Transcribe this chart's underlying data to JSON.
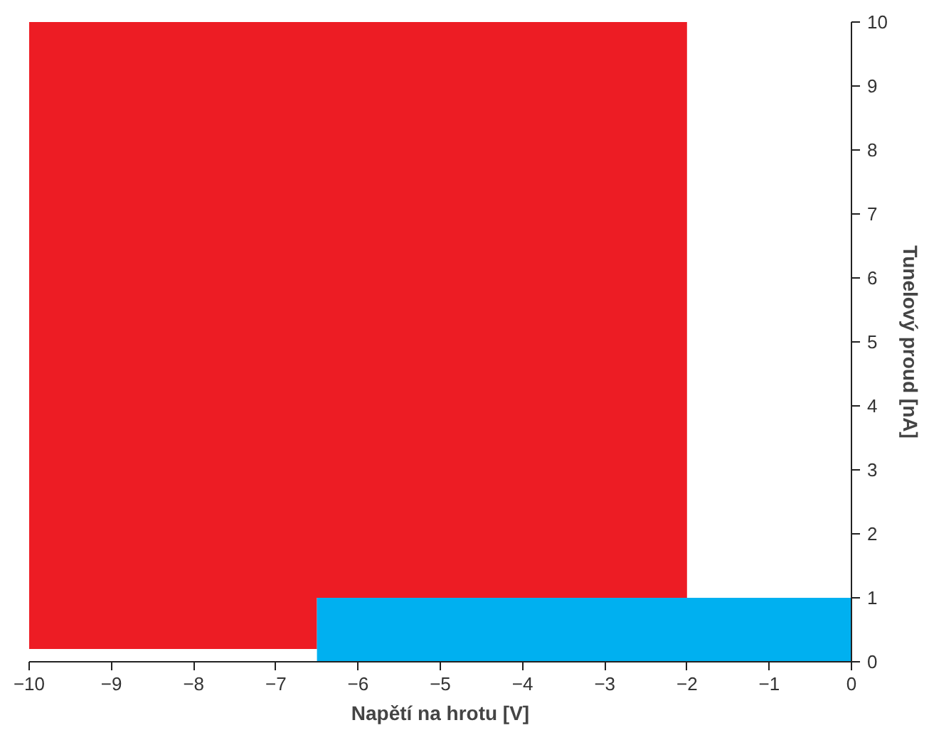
{
  "chart_data": {
    "type": "area",
    "xlabel": "Napětí na hrotu [V]",
    "ylabel": "Tunelový proud [nA]",
    "series": [
      {
        "color": "#ed1c24",
        "x": [
          -10,
          -10,
          -2,
          -2,
          -6.5,
          -6.5
        ],
        "values": [
          0.2,
          10,
          10,
          1,
          1,
          0.2
        ]
      },
      {
        "color": "#00b0f0",
        "x": [
          -6.5,
          -6.5,
          0,
          0
        ],
        "values": [
          0,
          1,
          1,
          0
        ]
      }
    ],
    "xlim": [
      -10,
      0
    ],
    "ylim": [
      0,
      10
    ],
    "xticks": [
      -10,
      -9,
      -8,
      -7,
      -6,
      -5,
      -4,
      -3,
      -2,
      -1,
      0
    ],
    "yticks": [
      0,
      1,
      2,
      3,
      4,
      5,
      6,
      7,
      8,
      9,
      10
    ],
    "grid": false
  }
}
